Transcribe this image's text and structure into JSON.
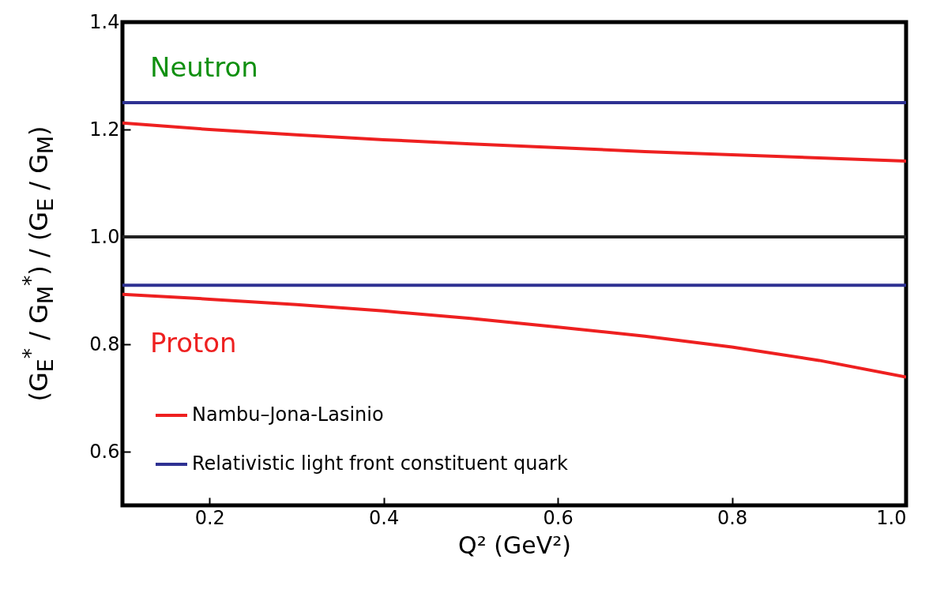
{
  "chart_data": {
    "type": "line",
    "xlabel": "Q² (GeV²)",
    "ylabel": "(G$_{E}$$^{*}$ / G$_{M}$$^{*}$) / (G$_{E}$ / G$_{M}$)",
    "x": [
      0.1,
      0.2,
      0.3,
      0.4,
      0.5,
      0.6,
      0.7,
      0.8,
      0.9,
      1.0
    ],
    "series": [
      {
        "name": "Nambu–Jona-Lasinio",
        "color": "#ee2020",
        "values": [
          1.212,
          1.2,
          1.19,
          1.181,
          1.173,
          1.166,
          1.159,
          1.153,
          1.147,
          1.141
        ]
      },
      {
        "name": "Relativistic light front constituent quark",
        "color": "#2e3192",
        "values": [
          1.25,
          1.25,
          1.25,
          1.25,
          1.25,
          1.25,
          1.25,
          1.25,
          1.25,
          1.25
        ]
      },
      {
        "color": "#ee2020",
        "values": [
          0.893,
          0.884,
          0.874,
          0.862,
          0.848,
          0.832,
          0.815,
          0.795,
          0.77,
          0.739
        ]
      },
      {
        "color": "#2e3192",
        "values": [
          0.91,
          0.91,
          0.91,
          0.91,
          0.91,
          0.91,
          0.91,
          0.91,
          0.91,
          0.91
        ]
      }
    ],
    "ref_lines": [
      {
        "axis": "y",
        "value": 1.0,
        "color": "#222222"
      }
    ],
    "annotations": [
      "Neutron",
      "Proton"
    ],
    "xlim": [
      0.1,
      1.0
    ],
    "ylim": [
      0.5,
      1.4
    ],
    "xticks": [
      0.2,
      0.4,
      0.6,
      0.8,
      {
        "value": 1.0,
        "label": "1.0"
      }
    ],
    "yticks": [
      0.6,
      0.8,
      {
        "value": 1.0,
        "label": "1.0"
      },
      1.2,
      1.4
    ],
    "grid": false,
    "legend": "bottom left",
    "line_style": "solid",
    "marker": "none"
  }
}
